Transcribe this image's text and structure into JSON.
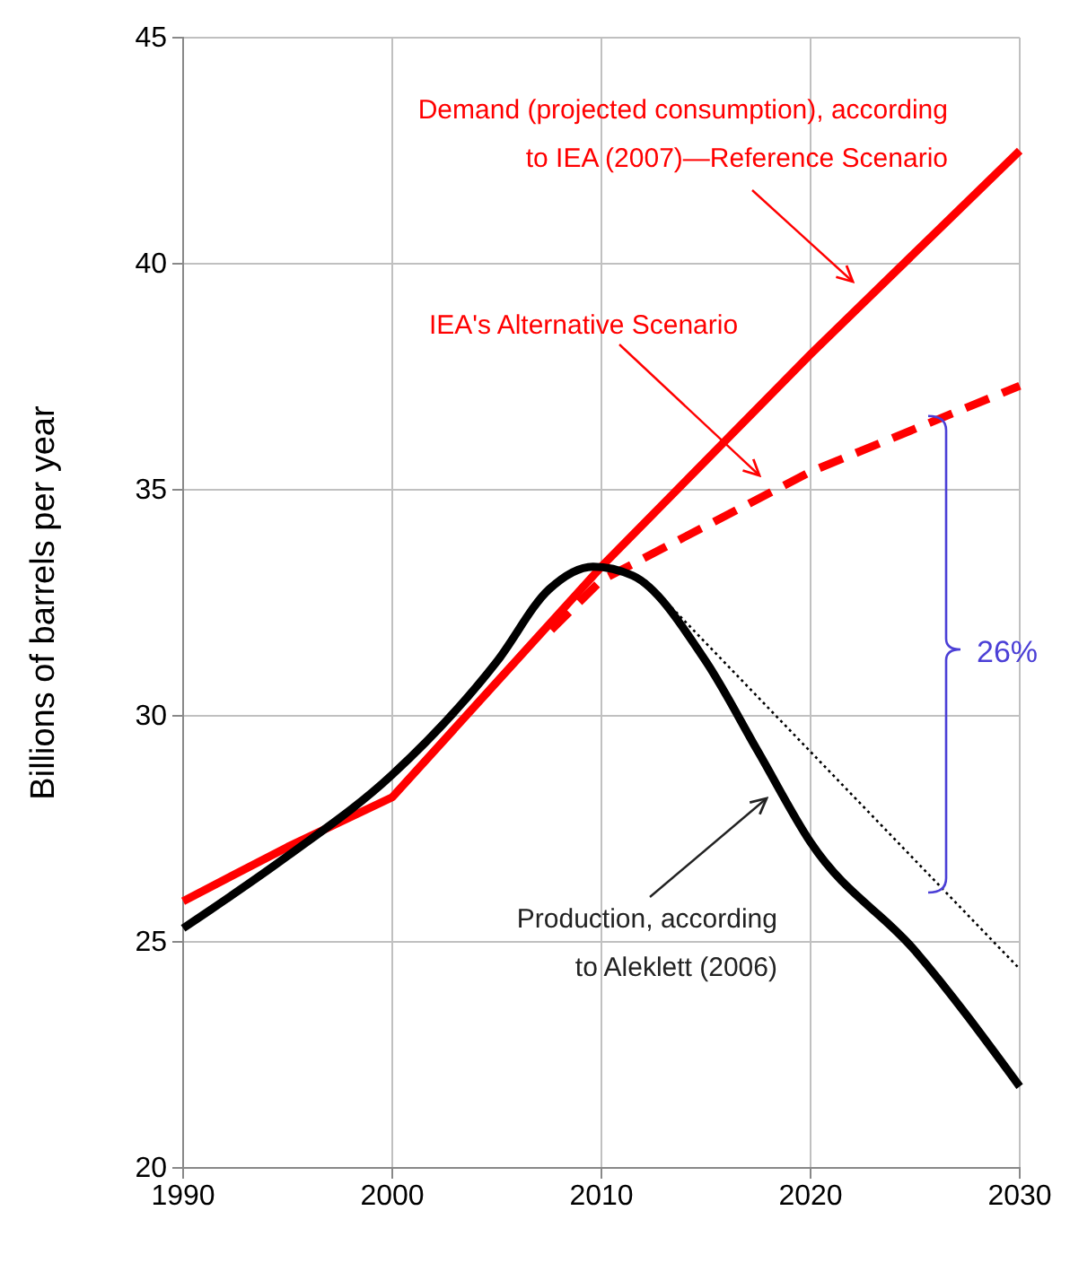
{
  "chart_data": {
    "type": "line",
    "ylabel": "Billions of barrels per year",
    "xlim": [
      1990,
      2030
    ],
    "ylim": [
      20,
      45
    ],
    "xticks": [
      1990,
      2000,
      2010,
      2020,
      2030
    ],
    "yticks": [
      20,
      25,
      30,
      35,
      40,
      45
    ],
    "grid": true,
    "marker": "none",
    "series": [
      {
        "color": "#ff0000",
        "line_style": "solid",
        "x": [
          1990,
          1995,
          2000,
          2010,
          2020,
          2030
        ],
        "values": [
          25.9,
          27.1,
          28.2,
          33.3,
          38.0,
          42.5
        ]
      },
      {
        "color": "#ff0000",
        "line_style": "dashed",
        "x": [
          2007.6,
          2010,
          2020,
          2030
        ],
        "values": [
          31.9,
          33.0,
          35.4,
          37.3
        ]
      },
      {
        "color": "#000000",
        "line_style": "solid",
        "x": [
          1990,
          1995,
          2000,
          2005,
          2007.5,
          2009.6,
          2011.5,
          2015,
          2017.5,
          2020,
          2025,
          2030
        ],
        "values": [
          25.3,
          26.9,
          28.7,
          31.2,
          32.8,
          33.3,
          33.1,
          31.2,
          29.2,
          27.2,
          24.8,
          21.8
        ]
      },
      {
        "color": "#000000",
        "line_style": "dotted",
        "x": [
          2012.1,
          2030
        ],
        "values": [
          33.0,
          24.4
        ]
      }
    ],
    "annotations": [
      "Demand (projected consumption),  according\nto IEA (2007)—Reference Scenario",
      "IEA's Alternative Scenario",
      "Production, according\nto Aleklett (2006)",
      "26%"
    ]
  }
}
